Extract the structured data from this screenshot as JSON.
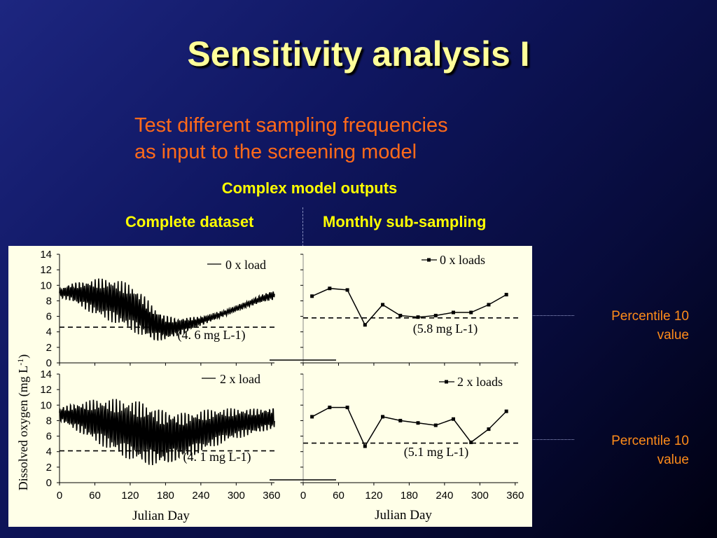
{
  "slide": {
    "title": "Sensitivity analysis I",
    "subtitle_line1": "Test different sampling frequencies",
    "subtitle_line2": "as input to the screening model",
    "section_heading": "Complex model outputs",
    "left_column": "Complete dataset",
    "right_column": "Monthly sub-sampling",
    "callout_top_line1": "Percentile 10",
    "callout_top_line2": "value",
    "callout_bottom_line1": "Percentile 10",
    "callout_bottom_line2": "value"
  },
  "chart_data": [
    {
      "type": "line",
      "panel": "top-left",
      "legend": "0 x load",
      "annotation": "(4. 6 mg L-1)",
      "percentile_10": 4.6,
      "xlim": [
        0,
        365
      ],
      "ylim": [
        0,
        14
      ],
      "yticks": [
        "14",
        "12",
        "10",
        "8",
        "6",
        "4",
        "2",
        "0"
      ],
      "envelope": {
        "x": [
          0,
          20,
          40,
          60,
          80,
          100,
          120,
          140,
          160,
          180,
          200,
          220,
          240,
          260,
          280,
          300,
          320,
          340,
          365
        ],
        "mean": [
          9,
          9.1,
          8.8,
          8.5,
          8.2,
          7.8,
          7.2,
          6.2,
          5.0,
          4.5,
          4.6,
          5.0,
          5.4,
          5.9,
          6.4,
          7.0,
          7.6,
          8.2,
          8.8
        ],
        "amp": [
          0.6,
          1.2,
          1.8,
          2.4,
          2.7,
          2.9,
          3.0,
          2.9,
          2.3,
          1.7,
          1.2,
          0.9,
          0.6,
          0.5,
          0.4,
          0.4,
          0.4,
          0.5,
          0.6
        ]
      }
    },
    {
      "type": "line",
      "panel": "top-right",
      "legend": "0 x loads",
      "annotation": "(5.8 mg L-1)",
      "percentile_10": 5.8,
      "xlim": [
        0,
        365
      ],
      "ylim": [
        0,
        14
      ],
      "x": [
        15,
        45,
        75,
        105,
        135,
        165,
        195,
        225,
        255,
        285,
        315,
        345
      ],
      "y": [
        8.6,
        9.6,
        9.4,
        4.9,
        7.5,
        6.1,
        5.9,
        6.1,
        6.5,
        6.5,
        7.5,
        8.8
      ]
    },
    {
      "type": "line",
      "panel": "bottom-left",
      "legend": "2 x load",
      "annotation": "(4. 1 mg L-1)",
      "percentile_10": 4.1,
      "xlim": [
        0,
        365
      ],
      "ylim": [
        0,
        14
      ],
      "yticks": [
        "14",
        "12",
        "10",
        "8",
        "6",
        "4",
        "2",
        "0"
      ],
      "envelope": {
        "x": [
          0,
          20,
          40,
          60,
          80,
          100,
          120,
          140,
          160,
          180,
          200,
          220,
          240,
          260,
          280,
          300,
          320,
          340,
          365
        ],
        "mean": [
          8.8,
          8.6,
          8.3,
          8.0,
          7.6,
          7.2,
          6.8,
          6.4,
          6.0,
          5.8,
          5.9,
          6.2,
          6.6,
          7.0,
          7.4,
          7.6,
          7.8,
          8.0,
          8.3
        ],
        "amp": [
          0.9,
          1.6,
          2.2,
          2.8,
          3.2,
          3.6,
          3.9,
          4.1,
          4.0,
          3.7,
          3.3,
          3.0,
          2.8,
          2.5,
          2.2,
          2.0,
          1.8,
          1.6,
          1.4
        ]
      }
    },
    {
      "type": "line",
      "panel": "bottom-right",
      "legend": "2 x loads",
      "annotation": "(5.1 mg L-1)",
      "percentile_10": 5.1,
      "xlim": [
        0,
        365
      ],
      "ylim": [
        0,
        14
      ],
      "xticks": [
        "0",
        "60",
        "120",
        "180",
        "240",
        "300",
        "360"
      ],
      "x": [
        15,
        45,
        75,
        105,
        135,
        165,
        195,
        225,
        255,
        285,
        315,
        345
      ],
      "y": [
        8.5,
        9.7,
        9.7,
        4.7,
        8.5,
        8.0,
        7.7,
        7.4,
        8.2,
        5.2,
        6.9,
        9.2
      ]
    }
  ],
  "axes": {
    "ylabel": "Dissolved oxygen (mg L",
    "ylabel_sup": "-1",
    "ylabel_end": ")",
    "xlabel_left": "Julian Day",
    "xlabel_right": "Julian Day",
    "xticks": [
      "0",
      "60",
      "120",
      "180",
      "240",
      "300",
      "360"
    ]
  },
  "colors": {
    "background": "#0f1660",
    "title": "#ffff99",
    "subtitle": "#ff6a1a",
    "heading": "#ffff00",
    "callout": "#ff8c1a",
    "panel": "#ffffe8"
  }
}
